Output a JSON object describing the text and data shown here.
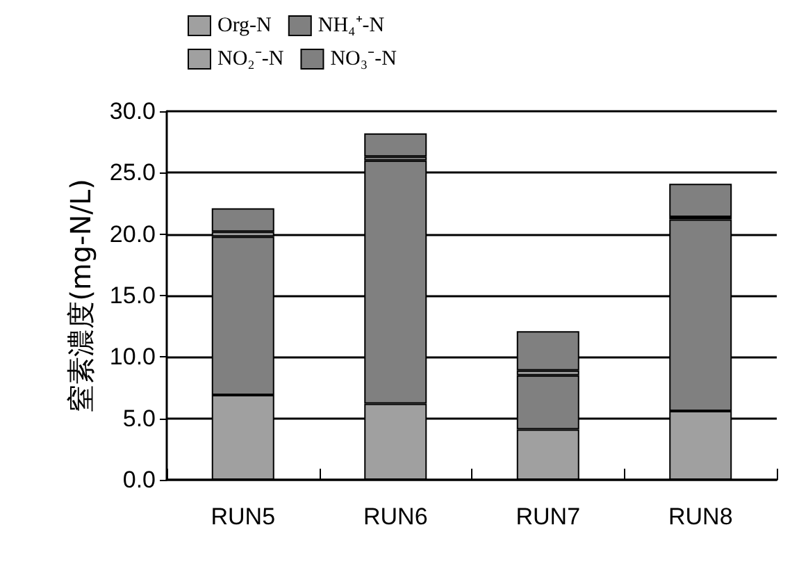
{
  "chart_data": {
    "type": "bar",
    "stacked": true,
    "ylabel": "窒素濃度(mg-N/L)",
    "categories": [
      "RUN5",
      "RUN6",
      "RUN7",
      "RUN8"
    ],
    "series": [
      {
        "name": "Org-N",
        "color": "#a0a0a0",
        "values": [
          6.9,
          6.2,
          4.1,
          5.6
        ]
      },
      {
        "name": "NH₄⁺-N",
        "color": "#808080",
        "values": [
          12.9,
          19.8,
          4.4,
          15.6
        ]
      },
      {
        "name": "NO₂⁻-N",
        "color": "#a0a0a0",
        "values": [
          0.4,
          0.3,
          0.4,
          0.2
        ]
      },
      {
        "name": "NO₃⁻-N",
        "color": "#808080",
        "values": [
          1.9,
          1.9,
          3.2,
          2.7
        ]
      }
    ],
    "ylim": [
      0,
      30
    ],
    "yticks": [
      {
        "value": 0,
        "label": "0.0"
      },
      {
        "value": 5,
        "label": "5.0"
      },
      {
        "value": 10,
        "label": "10.0"
      },
      {
        "value": 15,
        "label": "15.0"
      },
      {
        "value": 20,
        "label": "20.0"
      },
      {
        "value": 25,
        "label": "25.0"
      },
      {
        "value": 30,
        "label": "30.0"
      }
    ],
    "grid": "y",
    "legend": "top"
  }
}
